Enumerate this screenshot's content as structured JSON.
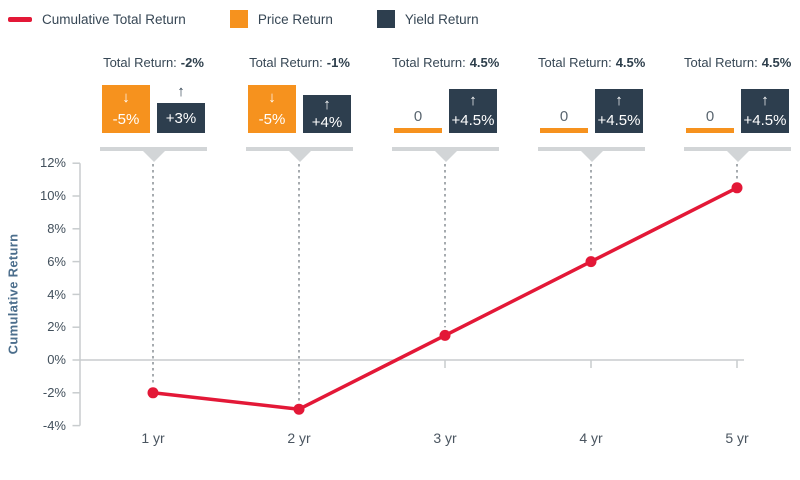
{
  "colors": {
    "red": "#E31837",
    "orange": "#F6921E",
    "navy": "#2D3E4E",
    "pointer_gray": "#D2D5D7",
    "axis_gray": "#C8CCCE",
    "dotted_gray": "#A6ABAF",
    "tick_label": "#42505C",
    "axis_title_blue": "#4C6E8C"
  },
  "legend": {
    "items": [
      {
        "label": "Cumulative Total Return",
        "swatch": "line",
        "color": "#E31837"
      },
      {
        "label": "Price Return",
        "swatch": "square",
        "color": "#F6921E"
      },
      {
        "label": "Yield Return",
        "swatch": "square",
        "color": "#2D3E4E"
      }
    ]
  },
  "annotations": [
    {
      "title_label": "Total Return:",
      "title_value": "-2%",
      "price_value": "-5%",
      "price_arrow": "down",
      "yield_value": "+3%",
      "yield_arrow": "up"
    },
    {
      "title_label": "Total Return:",
      "title_value": "-1%",
      "price_value": "-5%",
      "price_arrow": "down",
      "yield_value": "+4%",
      "yield_arrow": "up"
    },
    {
      "title_label": "Total Return:",
      "title_value": "4.5%",
      "price_value": "0",
      "price_arrow": "none",
      "yield_value": "+4.5%",
      "yield_arrow": "up"
    },
    {
      "title_label": "Total Return:",
      "title_value": "4.5%",
      "price_value": "0",
      "price_arrow": "none",
      "yield_value": "+4.5%",
      "yield_arrow": "up"
    },
    {
      "title_label": "Total Return:",
      "title_value": "4.5%",
      "price_value": "0",
      "price_arrow": "none",
      "yield_value": "+4.5%",
      "yield_arrow": "up"
    }
  ],
  "icons": {
    "down_arrow": "↓",
    "up_arrow": "↑"
  },
  "chart_data": {
    "type": "line",
    "title": "",
    "xlabel": "",
    "ylabel": "Cumulative Return",
    "categories": [
      "1 yr",
      "2 yr",
      "3 yr",
      "4 yr",
      "5 yr"
    ],
    "series": [
      {
        "name": "Cumulative Total Return",
        "values": [
          -2,
          -3,
          1.5,
          6,
          10.5
        ]
      }
    ],
    "per_year_components": {
      "price_return_pct": [
        -5,
        -5,
        0,
        0,
        0
      ],
      "yield_return_pct": [
        3,
        4,
        4.5,
        4.5,
        4.5
      ],
      "total_return_pct": [
        -2,
        -1,
        4.5,
        4.5,
        4.5
      ]
    },
    "yticks": [
      12,
      10,
      8,
      6,
      4,
      2,
      0,
      -2,
      -4
    ],
    "ytick_labels": [
      "12%",
      "10%",
      "8%",
      "6%",
      "4%",
      "2%",
      "0%",
      "-2%",
      "-4%"
    ],
    "ylim": [
      -4,
      12
    ],
    "grid": "zero-line-only",
    "legend_position": "top-left",
    "marker": "circle",
    "annotation_guides": "dotted vertical lines from each callout to its data point"
  }
}
